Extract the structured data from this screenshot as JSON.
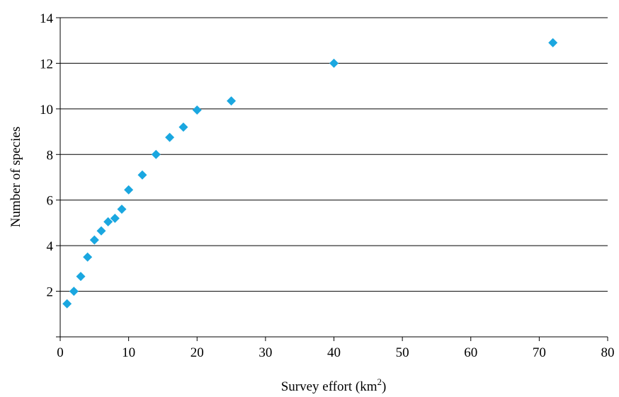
{
  "chart_data": {
    "type": "scatter",
    "xlabel": "Survey effort (km",
    "xlabel_superscript": "2",
    "xlabel_suffix": ")",
    "ylabel": "Number of species",
    "xlim": [
      0,
      80
    ],
    "ylim": [
      0,
      14
    ],
    "x_ticks": [
      0,
      10,
      20,
      30,
      40,
      50,
      60,
      70,
      80
    ],
    "y_ticks": [
      2,
      4,
      6,
      8,
      10,
      12,
      14
    ],
    "grid": "horizontal",
    "legend": "none",
    "marker": "diamond",
    "marker_color": "#1aa7e0",
    "series": [
      {
        "x": [
          1,
          2,
          3,
          4,
          5,
          6,
          7,
          8,
          9,
          10,
          12,
          14,
          16,
          18,
          20,
          25,
          40,
          72
        ],
        "y": [
          1.45,
          2.0,
          2.65,
          3.5,
          4.25,
          4.65,
          5.05,
          5.2,
          5.6,
          6.45,
          7.1,
          8.0,
          8.75,
          9.2,
          9.95,
          10.35,
          12.0,
          12.9
        ]
      }
    ]
  }
}
